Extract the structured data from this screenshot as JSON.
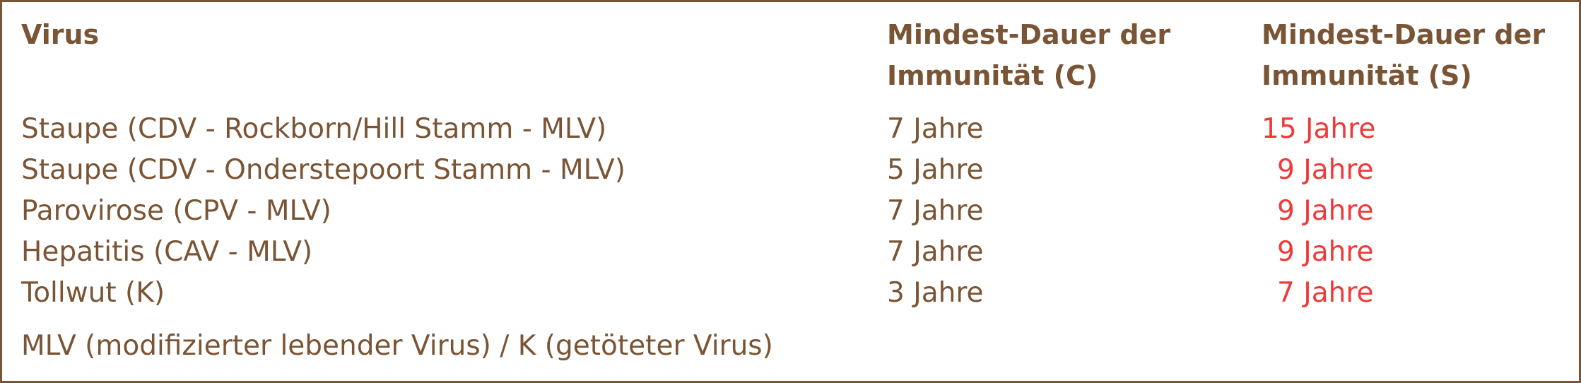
{
  "headers": {
    "virus": "Virus",
    "c": [
      "Mindest-Dauer der",
      "Immunität (C)"
    ],
    "s": [
      "Mindest-Dauer der",
      "Immunität (S)"
    ]
  },
  "rows": [
    {
      "virus": "Staupe (CDV - Rockborn/Hill Stamm - MLV)",
      "c": "7 Jahre",
      "s": "15 Jahre"
    },
    {
      "virus": "Staupe (CDV - Onderstepoort Stamm - MLV)",
      "c": "5 Jahre",
      "s": "9 Jahre"
    },
    {
      "virus": "Parovirose (CPV - MLV)",
      "c": "7 Jahre",
      "s": "9 Jahre"
    },
    {
      "virus": "Hepatitis (CAV - MLV)",
      "c": "7 Jahre",
      "s": "9 Jahre"
    },
    {
      "virus": "Tollwut (K)",
      "c": "3 Jahre",
      "s": "7 Jahre"
    }
  ],
  "footnote": "MLV (modifizierter lebender Virus) / K (getöteter Virus)",
  "colors": {
    "text": "#7a5535",
    "highlight": "#f03a3a",
    "border": "#7a5535"
  }
}
